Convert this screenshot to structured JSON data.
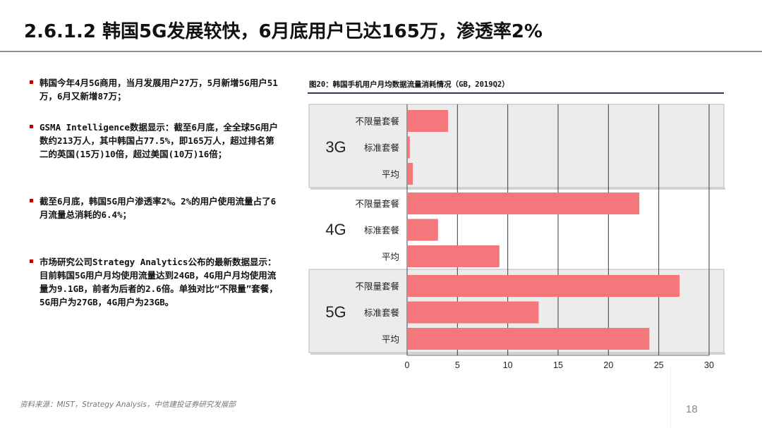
{
  "slide": {
    "title": "2.6.1.2 韩国5G发展较快，6月底用户已达165万，渗透率2%",
    "page_number": "18",
    "source": "资料来源：MIST，Strategy Analysis，中信建投证券研究发展部"
  },
  "bullets": [
    "韩国今年4月5G商用，当月发展用户27万，5月新增5G用户51万，6月又新增87万；",
    "GSMA Intelligence数据显示：截至6月底，全全球5G用户数约213万人，其中韩国占77.5%，即165万人，超过排名第二的英国(15万)10倍，超过美国(10万)16倍；",
    "截至6月底，韩国5G用户渗透率2%。2%的用户使用流量占了6月流量总消耗的6.4%；",
    "市场研究公司Strategy Analytics公布的最新数据显示：目前韩国5G用户月均使用流量达到24GB，4G用户月均使用流量为9.1GB，前者为后者的2.6倍。单独对比“不限量”套餐，5G用户为27GB，4G用户为23GB。"
  ],
  "chart_data": {
    "type": "bar",
    "orientation": "horizontal",
    "title": "图20：韩国手机用户月均数据流量消耗情况（GB，2019Q2）",
    "xlim": [
      0,
      30
    ],
    "xticks": [
      0,
      5,
      10,
      15,
      20,
      25,
      30
    ],
    "grid": true,
    "bar_color": "#f4777b",
    "groups": [
      {
        "name": "3G",
        "categories": [
          "不限量套餐",
          "标准套餐",
          "平均"
        ],
        "values": [
          4.0,
          0.2,
          0.5
        ]
      },
      {
        "name": "4G",
        "categories": [
          "不限量套餐",
          "标准套餐",
          "平均"
        ],
        "values": [
          23.0,
          3.0,
          9.1
        ]
      },
      {
        "name": "5G",
        "categories": [
          "不限量套餐",
          "标准套餐",
          "平均"
        ],
        "values": [
          27.0,
          13.0,
          24.0
        ]
      }
    ]
  }
}
